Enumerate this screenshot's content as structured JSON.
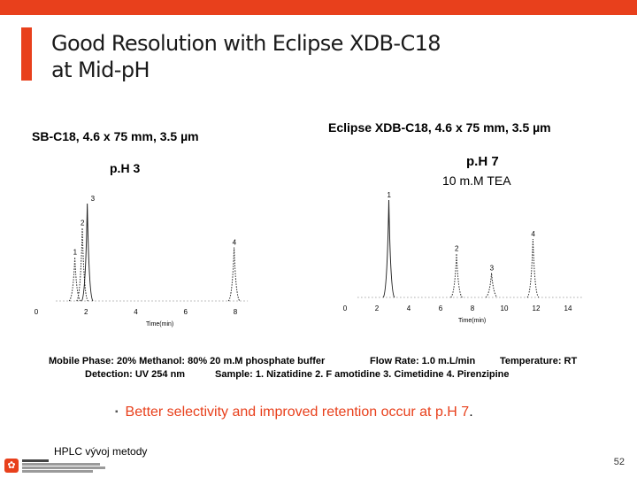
{
  "slide": {
    "title_line1": "Good Resolution with Eclipse XDB-C18",
    "title_line2": "at Mid-pH",
    "page_number": "52",
    "footer": "HPLC vývoj metody",
    "logo_icon": "faculty-logo-icon",
    "accent_color": "#e8401c"
  },
  "left_panel": {
    "column_label": "SB-C18,  4.6 x 75 mm, 3.5 µm",
    "ph_label": "p.H 3"
  },
  "right_panel": {
    "column_label": "Eclipse XDB-C18, 4.6 x 75 mm, 3.5 µm",
    "ph_label": "p.H 7",
    "buffer_label": "10 m.M TEA"
  },
  "conditions": {
    "line1_part1": "Mobile Phase:  20% Methanol: 80% 20 m.M phosphate buffer",
    "line1_part2": "Flow Rate: 1.0 m.L/min",
    "line1_part3": "Temperature:  RT",
    "line2_part1": "Detection:  UV 254 nm",
    "line2_part2": "Sample:  1. Nizatidine   2.  F amotidine  3.  Cimetidine  4. Pirenzipine"
  },
  "bullet": {
    "text": "Better selectivity and improved retention occur at p.H 7",
    "suffix": "."
  },
  "chart_data": [
    {
      "type": "line",
      "title": "SB-C18, 4.6 x 75 mm, 3.5 µm  p.H 3",
      "xlabel": "Time(min)",
      "ylabel": "",
      "x_ticks": [
        "0",
        "2",
        "4",
        "6",
        "8"
      ],
      "xlim": [
        0,
        8.5
      ],
      "peaks": [
        {
          "label": "1",
          "time": 1.55,
          "height": 0.45
        },
        {
          "label": "2",
          "time": 1.85,
          "height": 0.75
        },
        {
          "label": "3",
          "time": 2.05,
          "height": 1.0
        },
        {
          "label": "4",
          "time": 7.95,
          "height": 0.55
        }
      ]
    },
    {
      "type": "line",
      "title": "Eclipse XDB-C18, 4.6 x 75 mm, 3.5 µm  p.H 7",
      "xlabel": "Time(min)",
      "ylabel": "",
      "x_ticks": [
        "0",
        "2",
        "4",
        "6",
        "8",
        "10",
        "12",
        "14"
      ],
      "xlim": [
        0,
        15
      ],
      "peaks": [
        {
          "label": "1",
          "time": 2.75,
          "height": 1.0
        },
        {
          "label": "2",
          "time": 7.0,
          "height": 0.45
        },
        {
          "label": "3",
          "time": 9.2,
          "height": 0.25
        },
        {
          "label": "4",
          "time": 11.8,
          "height": 0.6
        }
      ]
    }
  ]
}
